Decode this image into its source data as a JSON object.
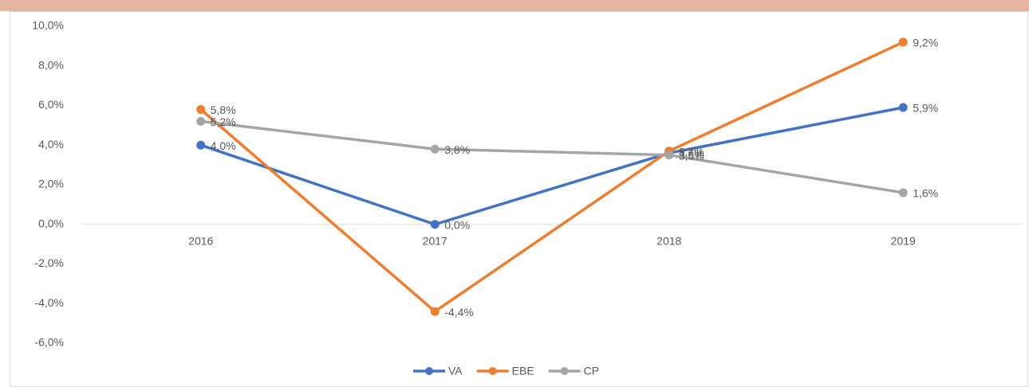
{
  "chart_data": {
    "type": "line",
    "categories": [
      "2016",
      "2017",
      "2018",
      "2019"
    ],
    "series": [
      {
        "name": "VA",
        "color": "#4472c4",
        "values": [
          4.0,
          0.0,
          3.6,
          5.9
        ],
        "value_labels": [
          "4,0%",
          "0,0%",
          "3,6%",
          "5,9%"
        ]
      },
      {
        "name": "EBE",
        "color": "#ed7d31",
        "values": [
          5.8,
          -4.4,
          3.7,
          9.2
        ],
        "value_labels": [
          "5,8%",
          "-4,4%",
          "3,7%",
          "9,2%"
        ]
      },
      {
        "name": "CP",
        "color": "#a5a5a5",
        "values": [
          5.2,
          3.8,
          3.5,
          1.6
        ],
        "value_labels": [
          "5,2%",
          "3,8%",
          "3,5%",
          "1,6%"
        ]
      }
    ],
    "ylim": [
      -6,
      10
    ],
    "yticks": [
      {
        "value": -6,
        "label": "-6,0%"
      },
      {
        "value": -4,
        "label": "-4,0%"
      },
      {
        "value": -2,
        "label": "-2,0%"
      },
      {
        "value": 0,
        "label": "0,0%"
      },
      {
        "value": 2,
        "label": "2,0%"
      },
      {
        "value": 4,
        "label": "4,0%"
      },
      {
        "value": 6,
        "label": "6,0%"
      },
      {
        "value": 8,
        "label": "8,0%"
      },
      {
        "value": 10,
        "label": "10,0%"
      }
    ],
    "grid": false,
    "legend": "bottom"
  }
}
